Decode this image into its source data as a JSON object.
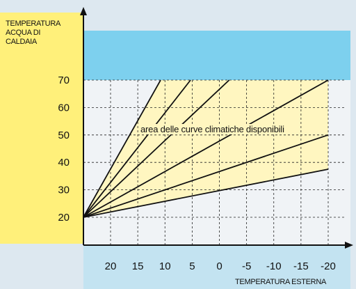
{
  "chart_data": {
    "type": "line",
    "ylabel_lines": [
      "TEMPERATURA",
      "ACQUA DI",
      "CALDAIA"
    ],
    "xlabel": "TEMPERATURA ESTERNA",
    "annotation": "area delle curve climatiche disponibili",
    "x_ticks": [
      20,
      15,
      10,
      5,
      0,
      -5,
      -10,
      -15,
      -20
    ],
    "x_tick_labels": [
      "20",
      "15",
      "10",
      "5",
      "0",
      "-5",
      "-10",
      "-15",
      "-20"
    ],
    "y_ticks": [
      20,
      30,
      40,
      50,
      60,
      70
    ],
    "xlim": [
      25,
      -20
    ],
    "ylim": [
      20,
      70
    ],
    "grid": true,
    "series": [
      {
        "points": [
          [
            25,
            20
          ],
          [
            10.8,
            70
          ]
        ]
      },
      {
        "points": [
          [
            25,
            20
          ],
          [
            5.3,
            70
          ]
        ]
      },
      {
        "points": [
          [
            25,
            20
          ],
          [
            -1.8,
            70
          ]
        ]
      },
      {
        "points": [
          [
            25,
            20
          ],
          [
            -20,
            70
          ]
        ]
      },
      {
        "points": [
          [
            25,
            20
          ],
          [
            -20,
            50
          ]
        ]
      },
      {
        "points": [
          [
            25,
            20
          ],
          [
            -20,
            37.5
          ]
        ]
      }
    ],
    "colors": {
      "background": "#dde8f0",
      "band_yellow": "#fff07a",
      "band_blue": "#7dd0ee",
      "area_fill": "#fff6c0",
      "lines": "#111111"
    }
  }
}
